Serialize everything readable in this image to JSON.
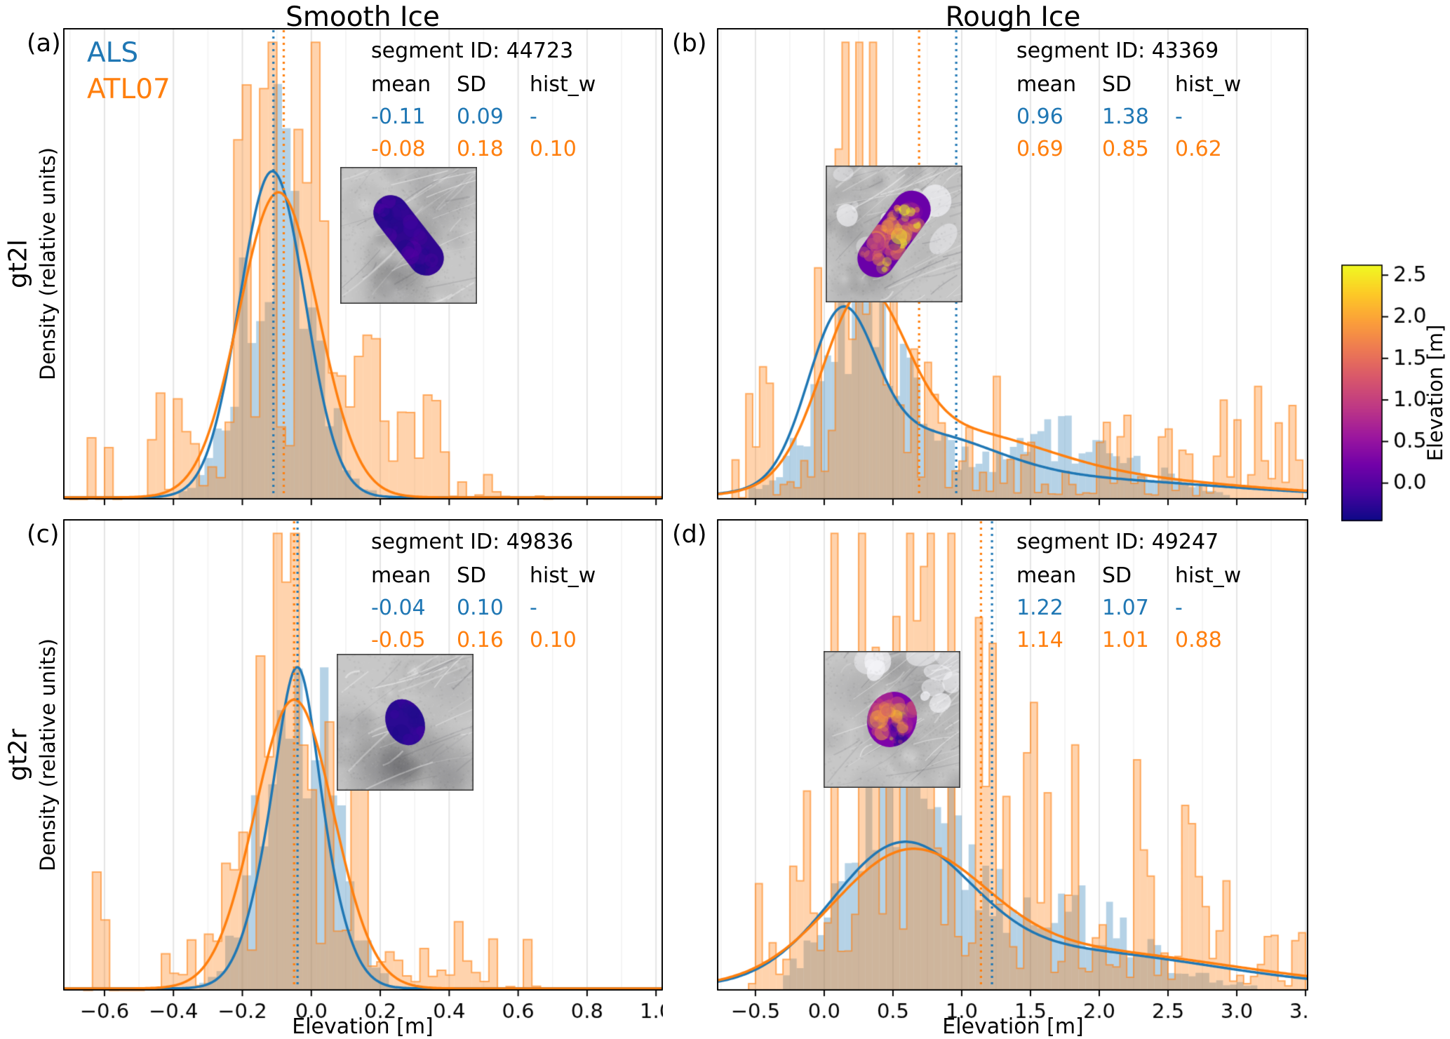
{
  "figure": {
    "col_titles": [
      "Smooth Ice",
      "Rough Ice"
    ],
    "row_labels": [
      "gt2l",
      "gt2r"
    ],
    "ylabel": "Density (relative units)",
    "xlabel": "Elevation [m]",
    "legend": {
      "als": "ALS",
      "atl07": "ATL07"
    },
    "stats_headers": [
      "mean",
      "SD",
      "hist_w"
    ],
    "colors": {
      "als": "#1f77b4",
      "atl07": "#ff7f0e",
      "grid_major": "#e3e3e3",
      "grid_minor": "#f1f1f1"
    }
  },
  "colorbar": {
    "label": "Elevation [m]",
    "ticks": [
      "2.5",
      "2.0",
      "1.5",
      "1.0",
      "0.5",
      "0.0"
    ],
    "tick_values": [
      2.5,
      2.0,
      1.5,
      1.0,
      0.5,
      0.0
    ],
    "vmin": -0.45,
    "vmax": 2.62,
    "stops": [
      [
        0,
        "#0d0887"
      ],
      [
        0.11,
        "#46039f"
      ],
      [
        0.22,
        "#7201a8"
      ],
      [
        0.33,
        "#9c179e"
      ],
      [
        0.44,
        "#bd3786"
      ],
      [
        0.56,
        "#d8576b"
      ],
      [
        0.67,
        "#ed7953"
      ],
      [
        0.78,
        "#fb9f3a"
      ],
      [
        0.89,
        "#fdca26"
      ],
      [
        1,
        "#f0f921"
      ]
    ]
  },
  "chart_data": [
    {
      "id": "a",
      "letter": "(a)",
      "row": "gt2l",
      "column": "Smooth Ice",
      "type": "histogram+kde",
      "segment_label": "segment ID: 44723",
      "stats": {
        "als": {
          "mean": "-0.11",
          "sd": "0.09",
          "hist_w": "-"
        },
        "atl07": {
          "mean": "-0.08",
          "sd": "0.18",
          "hist_w": "0.10"
        }
      },
      "xlim": [
        -0.72,
        1.02
      ],
      "xticks": [
        -0.6,
        -0.4,
        -0.2,
        0.0,
        0.2,
        0.4,
        0.6,
        0.8,
        1.0
      ],
      "xtick_labels": [
        "−0.6",
        "−0.4",
        "−0.2",
        "0.0",
        "0.2",
        "0.4",
        "0.6",
        "0.8",
        "1.0"
      ],
      "minor_step": 0.1,
      "show_xlabels": false,
      "vlines": {
        "als": -0.11,
        "atl07": -0.08
      },
      "als_kde": {
        "components": [
          {
            "m": -0.113,
            "s": 0.095,
            "w": 1
          }
        ],
        "peak": 0.7
      },
      "atl07_kde": {
        "components": [
          {
            "m": -0.095,
            "s": 0.115,
            "w": 1
          }
        ],
        "peak": 0.655
      },
      "als_hist": {
        "components": [
          {
            "m": -0.1,
            "s": 0.1,
            "w": 1
          }
        ],
        "range": [
          -0.46,
          0.4
        ],
        "bin": 0.025,
        "peak": 0.8,
        "style": "plain",
        "seed": 101
      },
      "atl07_hist": {
        "components": [
          {
            "m": -0.07,
            "s": 0.13,
            "w": 0.85
          },
          {
            "m": 0.12,
            "s": 0.25,
            "w": 0.15
          }
        ],
        "range": [
          -0.7,
          0.72
        ],
        "bin": 0.025,
        "peak": 0.93,
        "style": "spiky",
        "sparse": 0.3,
        "seed": 202
      },
      "inset": {
        "seed": 11,
        "rough": false,
        "shape": "capsule",
        "angle": -38,
        "len": 132,
        "wid": 50,
        "base": "#30078f",
        "palette": [
          "#1d0a8a",
          "#3a049e",
          "#4903a0",
          "#250c8f",
          "#5601a4"
        ],
        "mottle": 40,
        "hot": false
      }
    },
    {
      "id": "b",
      "letter": "(b)",
      "row": "gt2l",
      "column": "Rough Ice",
      "type": "histogram+kde",
      "segment_label": "segment ID: 43369",
      "stats": {
        "als": {
          "mean": "0.96",
          "sd": "1.38",
          "hist_w": "-"
        },
        "atl07": {
          "mean": "0.69",
          "sd": "0.85",
          "hist_w": "0.62"
        }
      },
      "xlim": [
        -0.78,
        3.52
      ],
      "xticks": [
        -0.5,
        0.0,
        0.5,
        1.0,
        1.5,
        2.0,
        2.5,
        3.0,
        3.5
      ],
      "xtick_labels": [
        "−0.5",
        "0.0",
        "0.5",
        "1.0",
        "1.5",
        "2.0",
        "2.5",
        "3.0",
        "3.5"
      ],
      "minor_step": 0.25,
      "show_xlabels": false,
      "vlines": {
        "als": 0.96,
        "atl07": 0.69
      },
      "als_kde": {
        "components": [
          {
            "m": 0.12,
            "s": 0.24,
            "w": 0.42
          },
          {
            "m": 0.65,
            "s": 0.55,
            "w": 0.33
          },
          {
            "m": 1.7,
            "s": 1.15,
            "w": 0.25
          }
        ],
        "peak": 0.41
      },
      "atl07_kde": {
        "components": [
          {
            "m": 0.28,
            "s": 0.3,
            "w": 0.48
          },
          {
            "m": 0.9,
            "s": 0.65,
            "w": 0.32
          },
          {
            "m": 1.9,
            "s": 1.1,
            "w": 0.2
          }
        ],
        "peak": 0.45
      },
      "als_hist": {
        "components": [
          {
            "m": 0.25,
            "s": 0.28,
            "w": 0.55
          },
          {
            "m": 1.9,
            "s": 0.45,
            "w": 0.2
          },
          {
            "m": 1.0,
            "s": 0.8,
            "w": 0.25
          }
        ],
        "range": [
          -0.55,
          3.3
        ],
        "bin": 0.05,
        "peak": 0.52,
        "style": "plain",
        "seed": 303
      },
      "atl07_hist": {
        "components": [
          {
            "m": 0.22,
            "s": 0.16,
            "w": 0.5
          },
          {
            "m": 0.7,
            "s": 0.5,
            "w": 0.22
          },
          {
            "m": 2.1,
            "s": 0.95,
            "w": 0.28
          }
        ],
        "range": [
          -0.72,
          3.5
        ],
        "bin": 0.05,
        "peak": 0.97,
        "style": "spiky",
        "sparse": 0.35,
        "seed": 404
      },
      "inset": {
        "seed": 22,
        "rough": true,
        "shape": "capsule",
        "angle": 36,
        "len": 140,
        "wid": 54,
        "base": "#6a00a8",
        "palette": [
          "#f0f921",
          "#fca636",
          "#e16462",
          "#d8576b",
          "#9c179e",
          "#3a049e",
          "#fca636",
          "#f0f921"
        ],
        "mottle": 80,
        "hot": true
      }
    },
    {
      "id": "c",
      "letter": "(c)",
      "row": "gt2r",
      "column": "Smooth Ice",
      "type": "histogram+kde",
      "segment_label": "segment ID: 49836",
      "stats": {
        "als": {
          "mean": "-0.04",
          "sd": "0.10",
          "hist_w": "-"
        },
        "atl07": {
          "mean": "-0.05",
          "sd": "0.16",
          "hist_w": "0.10"
        }
      },
      "xlim": [
        -0.72,
        1.02
      ],
      "xticks": [
        -0.6,
        -0.4,
        -0.2,
        0.0,
        0.2,
        0.4,
        0.6,
        0.8,
        1.0
      ],
      "xtick_labels": [
        "−0.6",
        "−0.4",
        "−0.2",
        "0.0",
        "0.2",
        "0.4",
        "0.6",
        "0.8",
        "1.0"
      ],
      "minor_step": 0.1,
      "show_xlabels": true,
      "vlines": {
        "als": -0.04,
        "atl07": -0.05
      },
      "als_kde": {
        "components": [
          {
            "m": -0.045,
            "s": 0.09,
            "w": 0.85
          },
          {
            "m": -0.038,
            "s": 0.045,
            "w": 0.15
          }
        ],
        "peak": 0.69
      },
      "atl07_kde": {
        "components": [
          {
            "m": -0.05,
            "s": 0.115,
            "w": 1
          }
        ],
        "peak": 0.62
      },
      "als_hist": {
        "components": [
          {
            "m": -0.04,
            "s": 0.1,
            "w": 1
          }
        ],
        "range": [
          -0.4,
          0.45
        ],
        "bin": 0.025,
        "peak": 0.78,
        "style": "plain",
        "seed": 505
      },
      "atl07_hist": {
        "components": [
          {
            "m": -0.05,
            "s": 0.125,
            "w": 0.85
          },
          {
            "m": 0.15,
            "s": 0.22,
            "w": 0.15
          }
        ],
        "range": [
          -0.66,
          0.72
        ],
        "bin": 0.025,
        "peak": 0.92,
        "style": "spiky",
        "sparse": 0.3,
        "seed": 606
      },
      "inset": {
        "seed": 33,
        "rough": false,
        "shape": "ellipse",
        "angle": -25,
        "len": 68,
        "wid": 54,
        "base": "#2b0a92",
        "palette": [
          "#1d0a8a",
          "#3a049e",
          "#4903a0",
          "#250c8f"
        ],
        "mottle": 26,
        "hot": false
      }
    },
    {
      "id": "d",
      "letter": "(d)",
      "row": "gt2r",
      "column": "Rough Ice",
      "type": "histogram+kde",
      "segment_label": "segment ID: 49247",
      "stats": {
        "als": {
          "mean": "1.22",
          "sd": "1.07",
          "hist_w": "-"
        },
        "atl07": {
          "mean": "1.14",
          "sd": "1.01",
          "hist_w": "0.88"
        }
      },
      "xlim": [
        -0.78,
        3.52
      ],
      "xticks": [
        -0.5,
        0.0,
        0.5,
        1.0,
        1.5,
        2.0,
        2.5,
        3.0,
        3.5
      ],
      "xtick_labels": [
        "−0.5",
        "0.0",
        "0.5",
        "1.0",
        "1.5",
        "2.0",
        "2.5",
        "3.0",
        "3.5"
      ],
      "minor_step": 0.25,
      "show_xlabels": true,
      "vlines": {
        "als": 1.22,
        "atl07": 1.14
      },
      "als_kde": {
        "components": [
          {
            "m": 0.55,
            "s": 0.5,
            "w": 0.6
          },
          {
            "m": 1.7,
            "s": 1.1,
            "w": 0.4
          }
        ],
        "peak": 0.315
      },
      "atl07_kde": {
        "components": [
          {
            "m": 0.6,
            "s": 0.55,
            "w": 0.6
          },
          {
            "m": 1.8,
            "s": 1.15,
            "w": 0.4
          }
        ],
        "peak": 0.3
      },
      "als_hist": {
        "components": [
          {
            "m": 0.6,
            "s": 0.35,
            "w": 0.5
          },
          {
            "m": 1.8,
            "s": 0.5,
            "w": 0.2
          },
          {
            "m": 1.1,
            "s": 0.9,
            "w": 0.3
          }
        ],
        "range": [
          -0.3,
          3.3
        ],
        "bin": 0.05,
        "peak": 0.52,
        "style": "plain",
        "seed": 707
      },
      "atl07_hist": {
        "components": [
          {
            "m": 0.55,
            "s": 0.35,
            "w": 0.45
          },
          {
            "m": 0.0,
            "s": 0.15,
            "w": 0.1
          },
          {
            "m": 2.2,
            "s": 0.9,
            "w": 0.3
          },
          {
            "m": 1.2,
            "s": 0.6,
            "w": 0.15
          }
        ],
        "range": [
          -0.55,
          3.5
        ],
        "bin": 0.05,
        "peak": 0.88,
        "style": "spiky",
        "sparse": 0.4,
        "seed": 808
      },
      "inset": {
        "seed": 44,
        "rough": true,
        "shape": "ellipse",
        "angle": 20,
        "len": 80,
        "wid": 70,
        "base": "#7e03a8",
        "palette": [
          "#f0f921",
          "#fca636",
          "#cc4778",
          "#4903a0",
          "#2d0a93",
          "#e16462",
          "#9c179e"
        ],
        "mottle": 60,
        "hot": true
      }
    }
  ]
}
